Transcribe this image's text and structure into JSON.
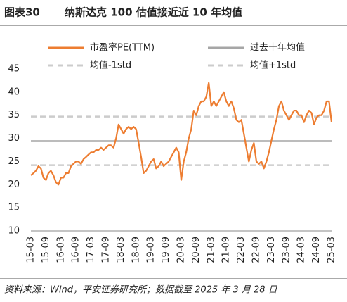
{
  "chart_data": {
    "type": "line",
    "figure_label": "图表30",
    "title": "纳斯达克 100 估值接近近 10 年均值",
    "source": "资料来源：Wind，平安证券研究所；数据截至 2025 年 3 月 28 日",
    "categories": [
      "15-03",
      null,
      null,
      null,
      null,
      null,
      "15-09",
      null,
      null,
      null,
      null,
      null,
      "16-03",
      null,
      null,
      null,
      null,
      null,
      "16-09",
      null,
      null,
      null,
      null,
      null,
      "17-03",
      null,
      null,
      null,
      null,
      null,
      "17-09",
      null,
      null,
      null,
      null,
      null,
      "18-03",
      null,
      null,
      null,
      null,
      null,
      "18-09",
      null,
      null,
      null,
      null,
      null,
      "19-03",
      null,
      null,
      null,
      null,
      null,
      "19-09",
      null,
      null,
      null,
      null,
      null,
      "20-03",
      null,
      null,
      null,
      null,
      null,
      "20-09",
      null,
      null,
      null,
      null,
      null,
      "21-03",
      null,
      null,
      null,
      null,
      null,
      "21-09",
      null,
      null,
      null,
      null,
      null,
      "22-03",
      null,
      null,
      null,
      null,
      null,
      "22-09",
      null,
      null,
      null,
      null,
      null,
      "23-03",
      null,
      null,
      null,
      null,
      null,
      "23-09",
      null,
      null,
      null,
      null,
      null,
      "24-03",
      null,
      null,
      null,
      null,
      null,
      "24-09",
      null,
      null,
      null,
      null,
      null,
      "25-03"
    ],
    "series": [
      {
        "name": "市盈率PE(TTM)",
        "color": "#ED7D31",
        "values": [
          22,
          22.5,
          23,
          24,
          23.5,
          21.5,
          21,
          22.5,
          23,
          22,
          20.5,
          20,
          21.5,
          21.5,
          22.5,
          22.5,
          24,
          24.5,
          25,
          25,
          24.5,
          25.5,
          26,
          26.5,
          27,
          27,
          27.5,
          27.5,
          28,
          27.5,
          28,
          28.5,
          28.5,
          28,
          30,
          33,
          32,
          31,
          32,
          32.5,
          32,
          32.5,
          32,
          29,
          26,
          22.5,
          23,
          24,
          25,
          25.5,
          23.5,
          24,
          25,
          24,
          24.5,
          25,
          26,
          27,
          28,
          27,
          21,
          25,
          27,
          30,
          32,
          36,
          35,
          37,
          38,
          38,
          39,
          42,
          37,
          38,
          37,
          38,
          39,
          40,
          38,
          37,
          38,
          36.5,
          34,
          33.5,
          34,
          31,
          28,
          25,
          27.5,
          29,
          25,
          24.5,
          25,
          23.5,
          25,
          27,
          29.5,
          32,
          34,
          37,
          38,
          36,
          35,
          34,
          35,
          36,
          36,
          35,
          35,
          33.5,
          35,
          36,
          35.5,
          33,
          34.5,
          35,
          35,
          36,
          38,
          38,
          33.5
        ]
      }
    ],
    "reference_lines": [
      {
        "name": "过去十年均值",
        "color": "#A6A6A6",
        "value": 29.4,
        "dashed": false
      },
      {
        "name": "均值-1std",
        "color": "#CCCCCC",
        "value": 24.2,
        "dashed": true
      },
      {
        "name": "均值+1std",
        "color": "#CCCCCC",
        "value": 34.7,
        "dashed": true
      }
    ],
    "ylim": [
      10,
      45
    ],
    "yticks": [
      10,
      15,
      20,
      25,
      30,
      35,
      40,
      45
    ]
  }
}
